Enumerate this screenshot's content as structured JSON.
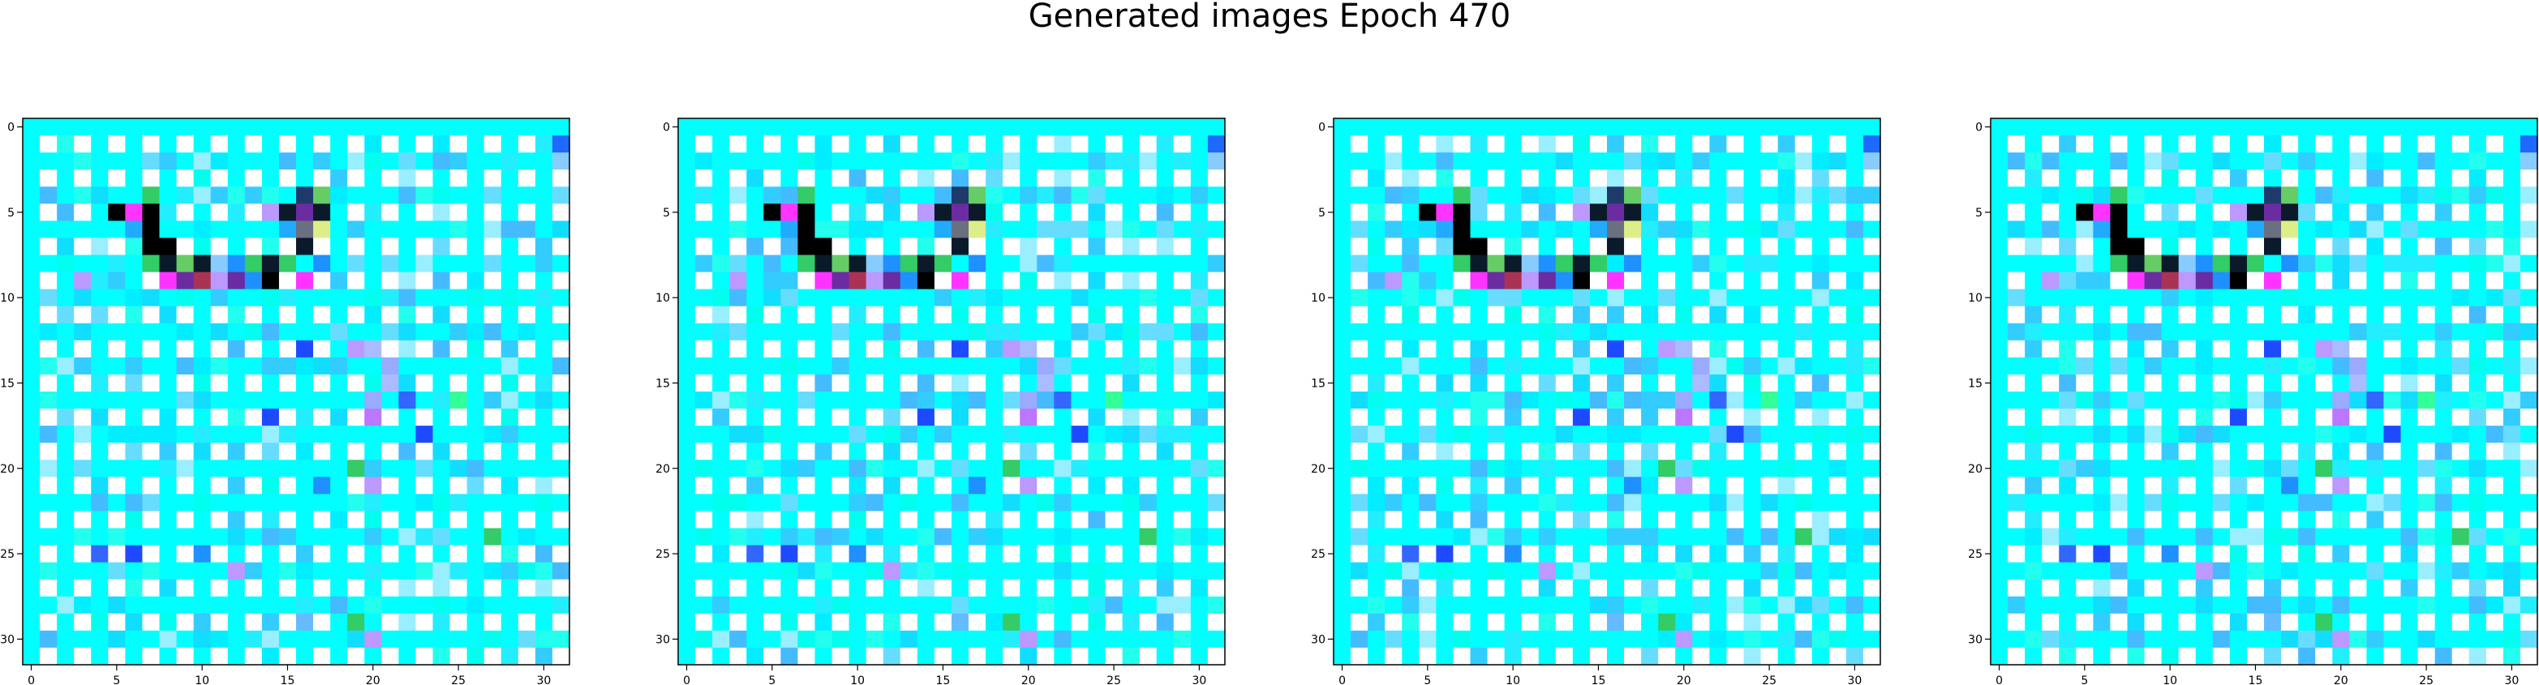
{
  "figure": {
    "title": "Generated images Epoch 470"
  },
  "chart_data": {
    "type": "heatmap",
    "title": "Generated images Epoch 470",
    "image_count": 4,
    "grid_size": [
      32,
      32
    ],
    "xlim": [
      -0.5,
      31.5
    ],
    "ylim": [
      31.5,
      -0.5
    ],
    "xticks": [
      0,
      5,
      10,
      15,
      20,
      25,
      30
    ],
    "yticks": [
      0,
      5,
      10,
      15,
      20,
      25,
      30
    ],
    "palette": {
      "background": "#00ffff",
      "checker_on": "#ffffff",
      "checker_off": "#00ffff",
      "accents": [
        "#000000",
        "#ff33ff",
        "#1e90ff",
        "#33cc66",
        "#6a2ca0",
        "#bb99ff",
        "#0a1a2a",
        "#e0f0ff",
        "#88ccff",
        "#22aaff"
      ]
    },
    "sparse_pixels": [
      {
        "x": 5,
        "y": 5,
        "color": "#000000"
      },
      {
        "x": 6,
        "y": 5,
        "color": "#ff33ff"
      },
      {
        "x": 7,
        "y": 5,
        "color": "#000000"
      },
      {
        "x": 7,
        "y": 4,
        "color": "#33cc66"
      },
      {
        "x": 6,
        "y": 6,
        "color": "#22aaff"
      },
      {
        "x": 7,
        "y": 6,
        "color": "#000000"
      },
      {
        "x": 7,
        "y": 7,
        "color": "#000000"
      },
      {
        "x": 8,
        "y": 7,
        "color": "#000000"
      },
      {
        "x": 7,
        "y": 8,
        "color": "#33cc66"
      },
      {
        "x": 8,
        "y": 8,
        "color": "#0a1a2a"
      },
      {
        "x": 9,
        "y": 8,
        "color": "#66cc66"
      },
      {
        "x": 10,
        "y": 8,
        "color": "#0a1a2a"
      },
      {
        "x": 11,
        "y": 8,
        "color": "#88ccff"
      },
      {
        "x": 12,
        "y": 8,
        "color": "#1e90ff"
      },
      {
        "x": 13,
        "y": 8,
        "color": "#33cc66"
      },
      {
        "x": 14,
        "y": 8,
        "color": "#0a1a2a"
      },
      {
        "x": 8,
        "y": 9,
        "color": "#ff33ff"
      },
      {
        "x": 9,
        "y": 9,
        "color": "#6a2ca0"
      },
      {
        "x": 10,
        "y": 9,
        "color": "#aa3355"
      },
      {
        "x": 11,
        "y": 9,
        "color": "#bb99ff"
      },
      {
        "x": 12,
        "y": 9,
        "color": "#6a2ca0"
      },
      {
        "x": 13,
        "y": 9,
        "color": "#1e90ff"
      },
      {
        "x": 14,
        "y": 9,
        "color": "#000000"
      },
      {
        "x": 15,
        "y": 9,
        "color": "#ffffff"
      },
      {
        "x": 16,
        "y": 9,
        "color": "#ff33ff"
      },
      {
        "x": 14,
        "y": 5,
        "color": "#bb99ff"
      },
      {
        "x": 15,
        "y": 5,
        "color": "#0a1a2a"
      },
      {
        "x": 16,
        "y": 5,
        "color": "#6a2ca0"
      },
      {
        "x": 17,
        "y": 5,
        "color": "#0a1a2a"
      },
      {
        "x": 16,
        "y": 4,
        "color": "#1e3a6a"
      },
      {
        "x": 17,
        "y": 4,
        "color": "#66cc66"
      },
      {
        "x": 15,
        "y": 6,
        "color": "#22aaff"
      },
      {
        "x": 16,
        "y": 6,
        "color": "#6a7080"
      },
      {
        "x": 17,
        "y": 6,
        "color": "#ddee88"
      },
      {
        "x": 16,
        "y": 7,
        "color": "#0a1a2a"
      },
      {
        "x": 15,
        "y": 8,
        "color": "#33cc66"
      },
      {
        "x": 17,
        "y": 8,
        "color": "#1e90ff"
      },
      {
        "x": 3,
        "y": 9,
        "color": "#bb99ff"
      },
      {
        "x": 5,
        "y": 9,
        "color": "#33ccff"
      },
      {
        "x": 16,
        "y": 13,
        "color": "#1e4aff"
      },
      {
        "x": 19,
        "y": 13,
        "color": "#bb99ff"
      },
      {
        "x": 20,
        "y": 13,
        "color": "#aabbff"
      },
      {
        "x": 21,
        "y": 14,
        "color": "#99aaff"
      },
      {
        "x": 21,
        "y": 15,
        "color": "#aabbff"
      },
      {
        "x": 20,
        "y": 16,
        "color": "#99aaff"
      },
      {
        "x": 14,
        "y": 17,
        "color": "#1e4aff"
      },
      {
        "x": 20,
        "y": 17,
        "color": "#bb77ff"
      },
      {
        "x": 22,
        "y": 16,
        "color": "#3366ff"
      },
      {
        "x": 25,
        "y": 16,
        "color": "#33ff99"
      },
      {
        "x": 23,
        "y": 18,
        "color": "#1e4aff"
      },
      {
        "x": 19,
        "y": 20,
        "color": "#33cc66"
      },
      {
        "x": 20,
        "y": 21,
        "color": "#bb99ff"
      },
      {
        "x": 12,
        "y": 26,
        "color": "#bb99ff"
      },
      {
        "x": 10,
        "y": 25,
        "color": "#1e90ff"
      },
      {
        "x": 6,
        "y": 25,
        "color": "#1e4aff"
      },
      {
        "x": 4,
        "y": 25,
        "color": "#3366ff"
      },
      {
        "x": 19,
        "y": 29,
        "color": "#33cc66"
      },
      {
        "x": 20,
        "y": 30,
        "color": "#bb99ff"
      },
      {
        "x": 27,
        "y": 24,
        "color": "#33cc66"
      },
      {
        "x": 31,
        "y": 0,
        "color": "#aaffcc"
      },
      {
        "x": 31,
        "y": 1,
        "color": "#1e6aff"
      },
      {
        "x": 31,
        "y": 2,
        "color": "#88ccff"
      },
      {
        "x": 16,
        "y": 29,
        "color": "#66bbff"
      },
      {
        "x": 17,
        "y": 21,
        "color": "#1e90ff"
      }
    ]
  }
}
